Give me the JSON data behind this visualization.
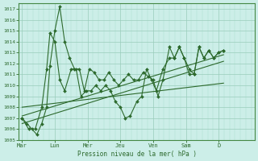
{
  "xlabel": "Pression niveau de la mer( hPa )",
  "background_color": "#cceee8",
  "line_color": "#2d6a2d",
  "marker_color": "#2d6a2d",
  "ylim": [
    1005,
    1017.5
  ],
  "xlim": [
    -0.1,
    7.1
  ],
  "yticks": [
    1005,
    1006,
    1007,
    1008,
    1009,
    1010,
    1011,
    1012,
    1013,
    1014,
    1015,
    1016,
    1017
  ],
  "day_labels": [
    "Mar",
    "Lun",
    "Mer",
    "Jeu",
    "Ven",
    "Sam",
    "D"
  ],
  "day_positions": [
    0,
    1,
    2,
    3,
    4,
    5,
    6
  ],
  "series1_x": [
    0.0,
    0.15,
    0.3,
    0.45,
    0.6,
    0.75,
    0.85,
    1.0,
    1.15,
    1.3,
    1.45,
    1.6,
    1.75,
    1.9,
    2.05,
    2.2,
    2.35,
    2.5,
    2.65,
    2.8,
    2.95,
    3.1,
    3.25,
    3.4,
    3.55,
    3.7,
    3.85,
    4.0,
    4.15,
    4.3,
    4.5,
    4.65,
    4.8,
    4.95,
    5.1,
    5.25,
    5.4,
    5.55,
    5.7,
    5.85,
    6.0,
    6.15
  ],
  "series1_y": [
    1007.0,
    1006.5,
    1006.0,
    1005.5,
    1006.5,
    1008.0,
    1011.8,
    1015.0,
    1017.2,
    1014.0,
    1012.5,
    1011.5,
    1011.5,
    1009.5,
    1011.5,
    1011.2,
    1010.5,
    1010.5,
    1011.2,
    1010.5,
    1010.0,
    1010.5,
    1011.0,
    1010.5,
    1010.5,
    1011.2,
    1010.8,
    1010.5,
    1009.0,
    1010.5,
    1013.5,
    1012.5,
    1013.5,
    1012.5,
    1011.5,
    1011.0,
    1013.5,
    1012.5,
    1013.2,
    1012.5,
    1013.0,
    1013.2
  ],
  "series2_x": [
    0.0,
    0.2,
    0.4,
    0.6,
    0.75,
    0.85,
    1.0,
    1.15,
    1.3,
    1.5,
    1.65,
    1.8,
    1.95,
    2.1,
    2.25,
    2.4,
    2.55,
    2.7,
    2.85,
    3.0,
    3.15,
    3.3,
    3.5,
    3.65,
    3.8,
    3.95,
    4.1,
    4.3,
    4.5,
    4.65,
    4.8,
    4.95,
    5.1,
    5.25,
    5.4,
    5.55,
    5.7,
    5.85,
    6.0,
    6.15
  ],
  "series2_y": [
    1007.0,
    1006.0,
    1006.0,
    1008.0,
    1011.5,
    1014.8,
    1014.0,
    1010.5,
    1009.5,
    1011.5,
    1011.5,
    1009.0,
    1009.5,
    1009.5,
    1010.0,
    1009.5,
    1010.0,
    1009.5,
    1008.5,
    1008.0,
    1007.0,
    1007.2,
    1008.5,
    1009.0,
    1011.5,
    1010.5,
    1009.5,
    1011.5,
    1012.5,
    1012.5,
    1013.5,
    1012.5,
    1011.0,
    1011.0,
    1013.5,
    1012.5,
    1013.2,
    1012.5,
    1013.0,
    1013.2
  ],
  "trend1_x": [
    0.0,
    6.15
  ],
  "trend1_y": [
    1006.5,
    1012.2
  ],
  "trend2_x": [
    0.0,
    6.15
  ],
  "trend2_y": [
    1007.2,
    1012.8
  ],
  "trend3_x": [
    0.0,
    6.15
  ],
  "trend3_y": [
    1008.0,
    1010.2
  ]
}
